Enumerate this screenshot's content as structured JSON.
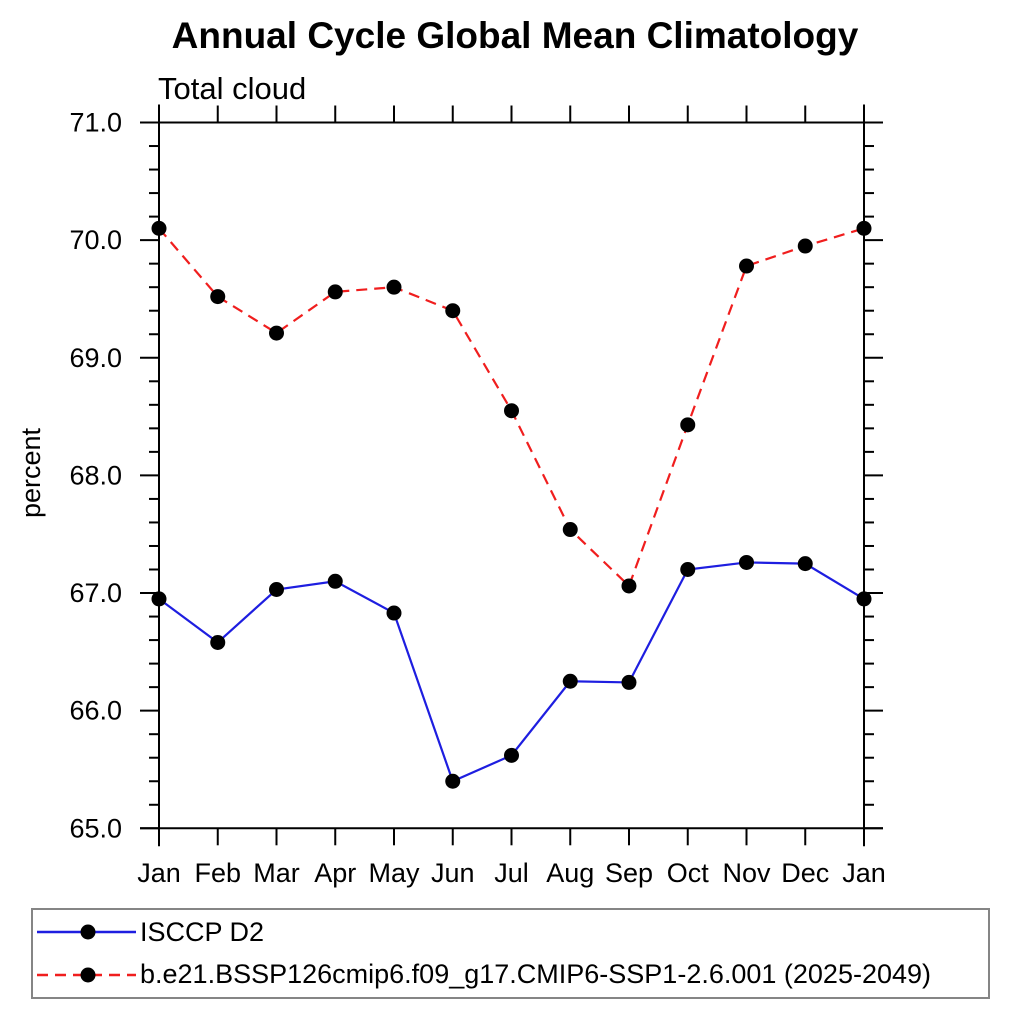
{
  "page": {
    "background": "#ffffff"
  },
  "chart_data": {
    "type": "line",
    "title": "Annual Cycle Global Mean Climatology",
    "subtitle": "Total cloud",
    "xlabel": "",
    "ylabel": "percent",
    "categories": [
      "Jan",
      "Feb",
      "Mar",
      "Apr",
      "May",
      "Jun",
      "Jul",
      "Aug",
      "Sep",
      "Oct",
      "Nov",
      "Dec",
      "Jan"
    ],
    "ylim": [
      65.0,
      71.0
    ],
    "ytick_interval": 1.0,
    "yminor_interval": 0.2,
    "ytick_labels": [
      "65.0",
      "66.0",
      "67.0",
      "68.0",
      "69.0",
      "70.0",
      "71.0"
    ],
    "grid": false,
    "legend_position": "bottom-left-box",
    "axis_color": "#000000",
    "marker": "filled-circle",
    "marker_color": "#000000",
    "series": [
      {
        "name": "ISCCP D2",
        "color": "#1e1ee0",
        "style": "solid",
        "dasharray": "none",
        "values": [
          66.95,
          66.58,
          67.03,
          67.1,
          66.83,
          65.4,
          65.62,
          66.25,
          66.24,
          67.2,
          67.26,
          67.25,
          66.95
        ]
      },
      {
        "name": "b.e21.BSSP126cmip6.f09_g17.CMIP6-SSP1-2.6.001 (2025-2049)",
        "color": "#f01e1e",
        "style": "dashed",
        "dasharray": "11 7",
        "values": [
          70.1,
          69.52,
          69.21,
          69.56,
          69.6,
          69.4,
          68.55,
          67.54,
          67.06,
          68.43,
          69.78,
          69.95,
          70.1
        ]
      }
    ]
  }
}
